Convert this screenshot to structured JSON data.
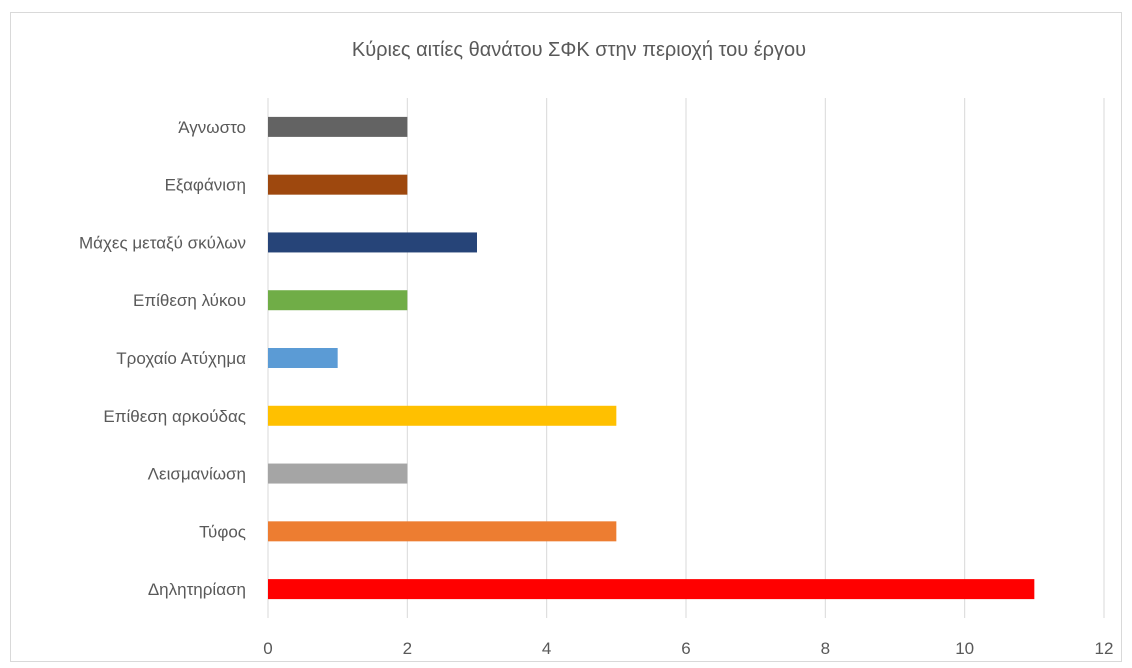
{
  "chart_data": {
    "type": "bar",
    "orientation": "horizontal",
    "title": "Κύριες αιτίες  θανάτου  ΣΦΚ στην περιοχή του έργου",
    "xlabel": "",
    "ylabel": "",
    "xlim": [
      0,
      12
    ],
    "x_ticks": [
      0,
      2,
      4,
      6,
      8,
      10,
      12
    ],
    "grid": true,
    "legend": "none",
    "categories": [
      "Άγνωστο",
      "Εξαφάνιση",
      "Μάχες μεταξύ σκύλων",
      "Επίθεση λύκου",
      "Τροχαίο Ατύχημα",
      "Επίθεση αρκούδας",
      "Λεισμανίωση",
      "Τύφος",
      "Δηλητηρίαση"
    ],
    "values": [
      2,
      2,
      3,
      2,
      1,
      5,
      2,
      5,
      11
    ],
    "colors": [
      "#636363",
      "#9e480e",
      "#264478",
      "#70ad47",
      "#5b9bd5",
      "#ffc000",
      "#a5a5a5",
      "#ed7d31",
      "#ff0000"
    ]
  }
}
